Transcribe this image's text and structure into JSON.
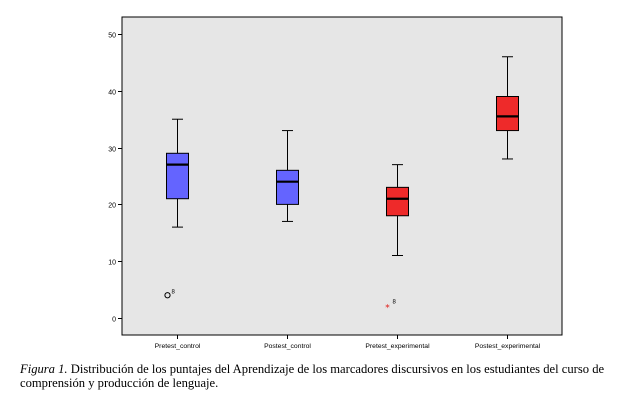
{
  "chart_data": {
    "type": "boxplot",
    "title": "",
    "xlabel": "",
    "ylabel": "",
    "ylim": [
      -3,
      53
    ],
    "yticks": [
      0,
      10,
      20,
      30,
      40,
      50
    ],
    "grid": false,
    "legend": "none",
    "background": "#e6e6e6",
    "categories": [
      "Pretest_control",
      "Postest_control",
      "Pretest_experimental",
      "Postest_experimental"
    ],
    "boxes": [
      {
        "category": "Pretest_control",
        "whisker_low": 16,
        "q1": 21,
        "median": 27,
        "q3": 29,
        "whisker_high": 35,
        "color": "#6464ff",
        "outliers": [
          {
            "value": 4,
            "marker": "circle",
            "label": "8"
          }
        ]
      },
      {
        "category": "Postest_control",
        "whisker_low": 17,
        "q1": 20,
        "median": 24,
        "q3": 26,
        "whisker_high": 33,
        "color": "#6464ff",
        "outliers": []
      },
      {
        "category": "Pretest_experimental",
        "whisker_low": 11,
        "q1": 18,
        "median": 21,
        "q3": 23,
        "whisker_high": 27,
        "color": "#ee2a2a",
        "outliers": [
          {
            "value": 2,
            "marker": "star",
            "label": "8"
          }
        ]
      },
      {
        "category": "Postest_experimental",
        "whisker_low": 28,
        "q1": 33,
        "median": 35.5,
        "q3": 39,
        "whisker_high": 46,
        "color": "#ee2a2a",
        "outliers": []
      }
    ]
  },
  "caption": {
    "label": "Figura 1.",
    "text": " Distribución de los puntajes del Aprendizaje de los marcadores discursivos en los estudiantes del curso de comprensión  y producción de lenguaje."
  }
}
